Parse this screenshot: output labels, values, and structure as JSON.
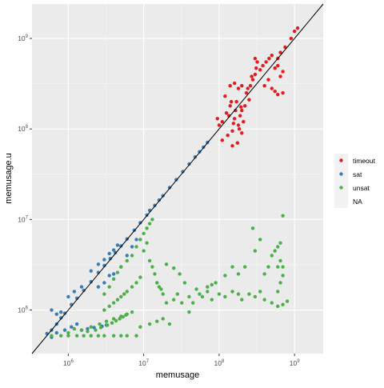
{
  "chart_data": {
    "type": "scatter",
    "xlabel": "memusage",
    "ylabel": "memusage.u",
    "x_scale": "log10",
    "y_scale": "log10",
    "xlim": [
      330000,
      2400000000
    ],
    "ylim": [
      330000,
      2400000000
    ],
    "x_ticks": [
      {
        "value": 1000000,
        "base": "10",
        "exp": "6"
      },
      {
        "value": 10000000,
        "base": "10",
        "exp": "7"
      },
      {
        "value": 100000000,
        "base": "10",
        "exp": "8"
      },
      {
        "value": 1000000000,
        "base": "10",
        "exp": "9"
      }
    ],
    "y_ticks": [
      {
        "value": 1000000,
        "base": "10",
        "exp": "6"
      },
      {
        "value": 10000000,
        "base": "10",
        "exp": "7"
      },
      {
        "value": 100000000,
        "base": "10",
        "exp": "8"
      },
      {
        "value": 1000000000,
        "base": "10",
        "exp": "9"
      }
    ],
    "grid": true,
    "legend_position": "right",
    "reference_line": {
      "type": "identity",
      "color": "#000000"
    },
    "series": [
      {
        "name": "timeout",
        "color": "#E41A1C",
        "points": [
          [
            110000000,
            120000000
          ],
          [
            125000000,
            150000000
          ],
          [
            140000000,
            180000000
          ],
          [
            160000000,
            130000000
          ],
          [
            180000000,
            110000000
          ],
          [
            200000000,
            160000000
          ],
          [
            150000000,
            95000000
          ],
          [
            130000000,
            85000000
          ],
          [
            170000000,
            200000000
          ],
          [
            190000000,
            140000000
          ],
          [
            210000000,
            120000000
          ],
          [
            230000000,
            250000000
          ],
          [
            250000000,
            210000000
          ],
          [
            140000000,
            300000000
          ],
          [
            160000000,
            320000000
          ],
          [
            180000000,
            280000000
          ],
          [
            120000000,
            230000000
          ],
          [
            110000000,
            75000000
          ],
          [
            100000000,
            110000000
          ],
          [
            95000000,
            130000000
          ],
          [
            150000000,
            65000000
          ],
          [
            175000000,
            70000000
          ],
          [
            200000000,
            90000000
          ],
          [
            220000000,
            180000000
          ],
          [
            260000000,
            300000000
          ],
          [
            280000000,
            350000000
          ],
          [
            300000000,
            400000000
          ],
          [
            350000000,
            450000000
          ],
          [
            380000000,
            500000000
          ],
          [
            420000000,
            550000000
          ],
          [
            460000000,
            600000000
          ],
          [
            500000000,
            650000000
          ],
          [
            300000000,
            600000000
          ],
          [
            320000000,
            550000000
          ],
          [
            400000000,
            300000000
          ],
          [
            450000000,
            350000000
          ],
          [
            500000000,
            280000000
          ],
          [
            550000000,
            260000000
          ],
          [
            600000000,
            240000000
          ],
          [
            700000000,
            250000000
          ],
          [
            650000000,
            380000000
          ],
          [
            700000000,
            430000000
          ],
          [
            600000000,
            500000000
          ],
          [
            550000000,
            470000000
          ],
          [
            750000000,
            800000000
          ],
          [
            900000000,
            1000000000
          ],
          [
            1000000000,
            1200000000
          ],
          [
            1100000000,
            1300000000
          ],
          [
            650000000,
            700000000
          ],
          [
            600000000,
            600000000
          ],
          [
            240000000,
            280000000
          ],
          [
            270000000,
            380000000
          ],
          [
            200000000,
            300000000
          ],
          [
            310000000,
            470000000
          ],
          [
            135000000,
            140000000
          ],
          [
            155000000,
            115000000
          ],
          [
            165000000,
            160000000
          ],
          [
            185000000,
            100000000
          ],
          [
            195000000,
            175000000
          ],
          [
            145000000,
            200000000
          ]
        ]
      },
      {
        "name": "sat",
        "color": "#377EB8",
        "points": [
          [
            520000,
            550000
          ],
          [
            600000,
            600000
          ],
          [
            700000,
            700000
          ],
          [
            800000,
            820000
          ],
          [
            900000,
            920000
          ],
          [
            1100000,
            1150000
          ],
          [
            1300000,
            1350000
          ],
          [
            1600000,
            1650000
          ],
          [
            2000000,
            2050000
          ],
          [
            2500000,
            2600000
          ],
          [
            3000000,
            3100000
          ],
          [
            3600000,
            3700000
          ],
          [
            4200000,
            4300000
          ],
          [
            5000000,
            5100000
          ],
          [
            6000000,
            6100000
          ],
          [
            7500000,
            7600000
          ],
          [
            9000000,
            9200000
          ],
          [
            11000000,
            11200000
          ],
          [
            14000000,
            14300000
          ],
          [
            18000000,
            18300000
          ],
          [
            22000000,
            22500000
          ],
          [
            27000000,
            27500000
          ],
          [
            33000000,
            33800000
          ],
          [
            40000000,
            41000000
          ],
          [
            48000000,
            49000000
          ],
          [
            55000000,
            56000000
          ],
          [
            62000000,
            63000000
          ],
          [
            70000000,
            71000000
          ],
          [
            600000,
            1000000
          ],
          [
            700000,
            900000
          ],
          [
            800000,
            950000
          ],
          [
            1000000,
            1400000
          ],
          [
            1200000,
            1600000
          ],
          [
            1500000,
            1800000
          ],
          [
            2000000,
            2700000
          ],
          [
            2500000,
            3200000
          ],
          [
            3000000,
            3600000
          ],
          [
            3500000,
            4200000
          ],
          [
            4000000,
            4600000
          ],
          [
            4500000,
            5200000
          ],
          [
            600000,
            500000
          ],
          [
            700000,
            560000
          ],
          [
            900000,
            600000
          ],
          [
            1100000,
            650000
          ],
          [
            1300000,
            700000
          ],
          [
            1500000,
            600000
          ],
          [
            1800000,
            620000
          ],
          [
            2200000,
            640000
          ],
          [
            2800000,
            660000
          ],
          [
            3200000,
            680000
          ],
          [
            4000000,
            2500000
          ],
          [
            5000000,
            3000000
          ],
          [
            6000000,
            4000000
          ],
          [
            7000000,
            5000000
          ],
          [
            8000000,
            6000000
          ],
          [
            3000000,
            2000000
          ],
          [
            2500000,
            1800000
          ],
          [
            3500000,
            2400000
          ],
          [
            12000000,
            12600000
          ],
          [
            16000000,
            16400000
          ]
        ]
      },
      {
        "name": "unsat",
        "color": "#4DAF4A",
        "points": [
          [
            600000,
            520000
          ],
          [
            800000,
            520000
          ],
          [
            1000000,
            520000
          ],
          [
            1300000,
            520000
          ],
          [
            1600000,
            520000
          ],
          [
            2000000,
            520000
          ],
          [
            2500000,
            520000
          ],
          [
            3000000,
            520000
          ],
          [
            4000000,
            520000
          ],
          [
            5000000,
            520000
          ],
          [
            6000000,
            520000
          ],
          [
            8000000,
            520000
          ],
          [
            1500000,
            600000
          ],
          [
            2000000,
            650000
          ],
          [
            2600000,
            700000
          ],
          [
            3200000,
            750000
          ],
          [
            4000000,
            800000
          ],
          [
            5000000,
            850000
          ],
          [
            6000000,
            900000
          ],
          [
            7000000,
            950000
          ],
          [
            9000000,
            650000
          ],
          [
            12000000,
            700000
          ],
          [
            15000000,
            750000
          ],
          [
            18000000,
            800000
          ],
          [
            22000000,
            700000
          ],
          [
            3000000,
            1000000
          ],
          [
            3500000,
            1100000
          ],
          [
            4000000,
            1200000
          ],
          [
            4500000,
            1300000
          ],
          [
            5000000,
            1400000
          ],
          [
            5500000,
            1500000
          ],
          [
            6000000,
            1600000
          ],
          [
            7000000,
            1800000
          ],
          [
            8000000,
            2000000
          ],
          [
            9000000,
            2300000
          ],
          [
            3000000,
            1500000
          ],
          [
            3500000,
            1800000
          ],
          [
            4000000,
            2200000
          ],
          [
            4500000,
            2600000
          ],
          [
            5000000,
            3000000
          ],
          [
            6000000,
            3500000
          ],
          [
            7000000,
            4000000
          ],
          [
            8000000,
            5000000
          ],
          [
            9000000,
            6000000
          ],
          [
            10000000,
            7000000
          ],
          [
            11000000,
            8000000
          ],
          [
            12000000,
            9000000
          ],
          [
            13000000,
            10000000
          ],
          [
            10000000,
            4500000
          ],
          [
            11000000,
            5500000
          ],
          [
            12000000,
            3500000
          ],
          [
            13000000,
            3000000
          ],
          [
            14000000,
            2500000
          ],
          [
            15000000,
            2000000
          ],
          [
            16000000,
            1800000
          ],
          [
            18000000,
            1500000
          ],
          [
            20000000,
            1200000
          ],
          [
            25000000,
            1300000
          ],
          [
            28000000,
            1500000
          ],
          [
            32000000,
            1200000
          ],
          [
            40000000,
            950000
          ],
          [
            45000000,
            1200000
          ],
          [
            55000000,
            1500000
          ],
          [
            60000000,
            1400000
          ],
          [
            70000000,
            1600000
          ],
          [
            80000000,
            1300000
          ],
          [
            100000000,
            1500000
          ],
          [
            120000000,
            1400000
          ],
          [
            150000000,
            1600000
          ],
          [
            180000000,
            1500000
          ],
          [
            200000000,
            1300000
          ],
          [
            250000000,
            1500000
          ],
          [
            300000000,
            1400000
          ],
          [
            350000000,
            1600000
          ],
          [
            400000000,
            1300000
          ],
          [
            500000000,
            1200000
          ],
          [
            600000000,
            1100000
          ],
          [
            700000000,
            1150000
          ],
          [
            800000000,
            1250000
          ],
          [
            600000000,
            1600000
          ],
          [
            650000000,
            2000000
          ],
          [
            700000000,
            2400000
          ],
          [
            600000000,
            3000000
          ],
          [
            650000000,
            3500000
          ],
          [
            700000000,
            3000000
          ],
          [
            500000000,
            4000000
          ],
          [
            550000000,
            4500000
          ],
          [
            600000000,
            5000000
          ],
          [
            650000000,
            5500000
          ],
          [
            700000000,
            11000000
          ],
          [
            400000000,
            2500000
          ],
          [
            450000000,
            3000000
          ],
          [
            300000000,
            4500000
          ],
          [
            350000000,
            6000000
          ],
          [
            280000000,
            8000000
          ],
          [
            220000000,
            3000000
          ],
          [
            180000000,
            2500000
          ],
          [
            150000000,
            3000000
          ],
          [
            120000000,
            2400000
          ],
          [
            90000000,
            2000000
          ],
          [
            80000000,
            1900000
          ],
          [
            70000000,
            1800000
          ],
          [
            50000000,
            1700000
          ],
          [
            40000000,
            1400000
          ],
          [
            35000000,
            2000000
          ],
          [
            30000000,
            2500000
          ],
          [
            25000000,
            2900000
          ],
          [
            20000000,
            3200000
          ],
          [
            17000000,
            1700000
          ],
          [
            1000000,
            560000
          ],
          [
            1200000,
            620000
          ],
          [
            1800000,
            580000
          ],
          [
            2300000,
            600000
          ],
          [
            2700000,
            640000
          ],
          [
            3300000,
            680000
          ],
          [
            3800000,
            720000
          ],
          [
            4300000,
            760000
          ],
          [
            4800000,
            800000
          ],
          [
            5300000,
            840000
          ],
          [
            5800000,
            880000
          ]
        ]
      },
      {
        "name": "NA",
        "color": null,
        "points": []
      }
    ]
  }
}
